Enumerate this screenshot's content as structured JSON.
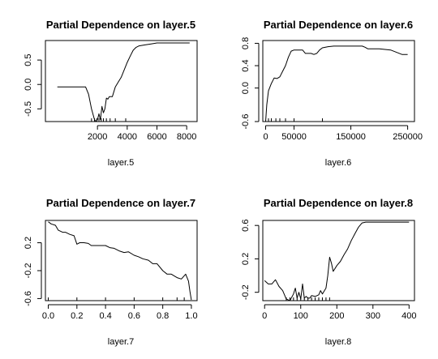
{
  "chart_data": [
    {
      "type": "line",
      "title": "Partial Dependence on layer.5",
      "xlabel": "layer.5",
      "ylabel": "",
      "xticks": [
        2000,
        4000,
        6000,
        8000
      ],
      "xtick_labels": [
        "2000",
        "4000",
        "6000",
        "8000"
      ],
      "yticks": [
        -0.5,
        0.0,
        0.5
      ],
      "ytick_labels": [
        "-0.5",
        "0.0",
        "0.5"
      ],
      "xlim": [
        -1500,
        8700
      ],
      "ylim": [
        -0.76,
        0.9
      ],
      "grid": false,
      "x": [
        -700,
        1200,
        1400,
        1600,
        1800,
        1900,
        2000,
        2100,
        2200,
        2300,
        2400,
        2500,
        2600,
        2700,
        2800,
        3000,
        3200,
        3400,
        3600,
        3800,
        4000,
        4200,
        4400,
        4600,
        4800,
        5200,
        5600,
        6000,
        7000,
        8200
      ],
      "y": [
        -0.05,
        -0.05,
        -0.2,
        -0.5,
        -0.72,
        -0.76,
        -0.72,
        -0.6,
        -0.72,
        -0.45,
        -0.58,
        -0.5,
        -0.28,
        -0.3,
        -0.25,
        -0.25,
        -0.05,
        0.05,
        0.15,
        0.3,
        0.45,
        0.58,
        0.7,
        0.76,
        0.79,
        0.81,
        0.83,
        0.85,
        0.85,
        0.85
      ],
      "rug": [
        1600,
        1800,
        1950,
        2100,
        2250,
        2400,
        2600,
        2850,
        3200,
        3900
      ]
    },
    {
      "type": "line",
      "title": "Partial Dependence on layer.6",
      "xlabel": "layer.6",
      "ylabel": "",
      "xticks": [
        0,
        50000,
        150000,
        250000
      ],
      "xtick_labels": [
        "0",
        "50000",
        "150000",
        "250000"
      ],
      "yticks": [
        -0.6,
        0.0,
        0.4,
        0.8
      ],
      "ytick_labels": [
        "-0.6",
        "0.0",
        "0.4",
        "0.8"
      ],
      "xlim": [
        -5000,
        262000
      ],
      "ylim": [
        -0.6,
        0.85
      ],
      "grid": false,
      "x": [
        0,
        2000,
        5000,
        10000,
        15000,
        20000,
        25000,
        30000,
        35000,
        40000,
        45000,
        50000,
        55000,
        60000,
        65000,
        70000,
        75000,
        80000,
        85000,
        90000,
        95000,
        100000,
        110000,
        120000,
        140000,
        160000,
        170000,
        175000,
        180000,
        200000,
        220000,
        240000,
        250000
      ],
      "y": [
        -0.6,
        -0.3,
        -0.05,
        0.08,
        0.18,
        0.17,
        0.2,
        0.3,
        0.4,
        0.55,
        0.66,
        0.68,
        0.68,
        0.68,
        0.68,
        0.62,
        0.62,
        0.62,
        0.6,
        0.62,
        0.68,
        0.72,
        0.74,
        0.75,
        0.75,
        0.75,
        0.75,
        0.73,
        0.7,
        0.7,
        0.68,
        0.6,
        0.6
      ],
      "rug": [
        5000,
        10000,
        18000,
        25000,
        35000,
        50000,
        100000
      ]
    },
    {
      "type": "line",
      "title": "Partial Dependence on layer.7",
      "xlabel": "layer.7",
      "ylabel": "",
      "xticks": [
        0.0,
        0.2,
        0.4,
        0.6,
        0.8,
        1.0
      ],
      "xtick_labels": [
        "0.0",
        "0.2",
        "0.4",
        "0.6",
        "0.8",
        "1.0"
      ],
      "yticks": [
        -0.6,
        -0.2,
        0.2
      ],
      "ytick_labels": [
        "-0.6",
        "-0.2",
        "0.2"
      ],
      "xlim": [
        -0.02,
        1.04
      ],
      "ylim": [
        -0.63,
        0.52
      ],
      "grid": false,
      "x": [
        0.0,
        0.02,
        0.05,
        0.07,
        0.1,
        0.12,
        0.15,
        0.18,
        0.2,
        0.22,
        0.25,
        0.28,
        0.3,
        0.33,
        0.36,
        0.4,
        0.43,
        0.46,
        0.5,
        0.53,
        0.56,
        0.6,
        0.63,
        0.66,
        0.7,
        0.73,
        0.76,
        0.8,
        0.83,
        0.86,
        0.9,
        0.93,
        0.96,
        0.98,
        0.99,
        1.0
      ],
      "y": [
        0.5,
        0.47,
        0.45,
        0.38,
        0.35,
        0.35,
        0.32,
        0.3,
        0.18,
        0.2,
        0.2,
        0.19,
        0.16,
        0.16,
        0.16,
        0.16,
        0.13,
        0.12,
        0.08,
        0.06,
        0.07,
        0.02,
        0.0,
        -0.03,
        -0.05,
        -0.1,
        -0.1,
        -0.2,
        -0.25,
        -0.25,
        -0.3,
        -0.32,
        -0.25,
        -0.35,
        -0.5,
        -0.62
      ],
      "rug": [
        0.0,
        0.2,
        0.4,
        0.6,
        0.8,
        0.9,
        0.95
      ]
    },
    {
      "type": "line",
      "title": "Partial Dependence on layer.8",
      "xlabel": "layer.8",
      "ylabel": "",
      "xticks": [
        0,
        100,
        200,
        300,
        400
      ],
      "xtick_labels": [
        "0",
        "100",
        "200",
        "300",
        "400"
      ],
      "yticks": [
        -0.2,
        0.2,
        0.6
      ],
      "ytick_labels": [
        "-0.2",
        "0.2",
        "0.6"
      ],
      "xlim": [
        -5,
        415
      ],
      "ylim": [
        -0.3,
        0.66
      ],
      "grid": false,
      "x": [
        0,
        10,
        20,
        30,
        40,
        50,
        60,
        70,
        80,
        85,
        90,
        95,
        100,
        105,
        110,
        115,
        120,
        125,
        130,
        140,
        150,
        155,
        160,
        170,
        175,
        180,
        185,
        190,
        200,
        210,
        220,
        230,
        240,
        250,
        260,
        270,
        280,
        300,
        350,
        400
      ],
      "y": [
        -0.06,
        -0.1,
        -0.1,
        -0.05,
        -0.13,
        -0.18,
        -0.28,
        -0.3,
        -0.22,
        -0.15,
        -0.27,
        -0.2,
        -0.28,
        -0.1,
        -0.27,
        -0.25,
        -0.27,
        -0.27,
        -0.24,
        -0.25,
        -0.23,
        -0.18,
        -0.22,
        -0.15,
        0.0,
        0.22,
        0.15,
        0.05,
        0.12,
        0.17,
        0.25,
        0.32,
        0.42,
        0.5,
        0.58,
        0.63,
        0.64,
        0.64,
        0.64,
        0.64
      ],
      "rug": [
        60,
        70,
        80,
        90,
        100,
        110,
        120,
        130,
        140,
        150,
        160,
        170,
        180
      ]
    }
  ]
}
